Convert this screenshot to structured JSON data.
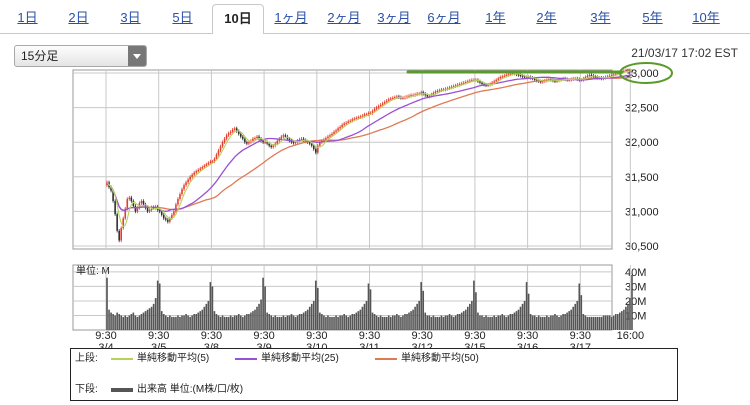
{
  "tabs": [
    {
      "label": "1日",
      "active": false
    },
    {
      "label": "2日",
      "active": false
    },
    {
      "label": "3日",
      "active": false
    },
    {
      "label": "5日",
      "active": false
    },
    {
      "label": "10日",
      "active": true
    },
    {
      "label": "1ヶ月",
      "active": false
    },
    {
      "label": "2ヶ月",
      "active": false
    },
    {
      "label": "3ヶ月",
      "active": false
    },
    {
      "label": "6ヶ月",
      "active": false
    },
    {
      "label": "1年",
      "active": false
    },
    {
      "label": "2年",
      "active": false
    },
    {
      "label": "3年",
      "active": false
    },
    {
      "label": "5年",
      "active": false
    },
    {
      "label": "10年",
      "active": false
    }
  ],
  "interval_select": {
    "value": "15分足"
  },
  "timestamp": "21/03/17 17:02 EST",
  "legend": {
    "upper_label": "上段:",
    "lower_label": "下段:",
    "ma5": "単純移動平均(5)",
    "ma25": "単純移動平均(25)",
    "ma50": "単純移動平均(50)",
    "volume": "出来高 単位:(M株/口/枚)"
  },
  "colors": {
    "candle_up": "#e53b2c",
    "candle_down": "#2f2f2f",
    "ma5": "#b5d35a",
    "ma25": "#9a4fd4",
    "ma50": "#e07a55",
    "volume": "#555555",
    "annotation": "#5a9a2a",
    "grid": "#c8c8c8"
  },
  "chart_data": [
    {
      "type": "line",
      "panel": "price",
      "y_ticks": [
        "33,000",
        "32,500",
        "32,000",
        "31,500",
        "31,000",
        "30,500"
      ],
      "ylim": [
        30500,
        33000
      ],
      "session_labels": [
        {
          "time": "9:30",
          "date": "3/4"
        },
        {
          "time": "9:30",
          "date": "3/5"
        },
        {
          "time": "9:30",
          "date": "3/8"
        },
        {
          "time": "9:30",
          "date": "3/9"
        },
        {
          "time": "9:30",
          "date": "3/10"
        },
        {
          "time": "9:30",
          "date": "3/11"
        },
        {
          "time": "9:30",
          "date": "3/12"
        },
        {
          "time": "9:30",
          "date": "3/15"
        },
        {
          "time": "9:30",
          "date": "3/16"
        },
        {
          "time": "9:30",
          "date": "3/17"
        },
        {
          "time": "16:00",
          "date": ""
        }
      ],
      "close_by_session": [
        [
          31420,
          31350,
          31300,
          31150,
          30960,
          30720,
          30580,
          30760,
          30900,
          31040,
          31180,
          31200,
          31150,
          31080,
          31000,
          31050,
          31120,
          31150,
          31100,
          31050,
          31000,
          31020,
          31060,
          31050,
          31070,
          31020
        ],
        [
          31000,
          30950,
          30900,
          30880,
          30850,
          30900,
          30950,
          31000,
          31100,
          31180,
          31250,
          31320,
          31380,
          31420,
          31460,
          31500,
          31530,
          31560,
          31580,
          31600,
          31620,
          31640,
          31660,
          31680,
          31700,
          31720
        ],
        [
          31720,
          31760,
          31820,
          31880,
          31940,
          32000,
          32050,
          32100,
          32130,
          32150,
          32180,
          32200,
          32160,
          32120,
          32080,
          32050,
          32000,
          31980,
          32000,
          32020,
          32050,
          32060,
          32080,
          32050,
          32020,
          32000
        ],
        [
          32000,
          31980,
          31950,
          31930,
          31950,
          31980,
          32020,
          32050,
          32080,
          32100,
          32080,
          32050,
          32020,
          32000,
          31990,
          32000,
          32020,
          32040,
          32050,
          32030,
          32010,
          32000,
          31980,
          31950,
          31900,
          31850
        ],
        [
          31950,
          32000,
          32020,
          32040,
          32060,
          32080,
          32100,
          32120,
          32150,
          32170,
          32200,
          32220,
          32250,
          32270,
          32280,
          32300,
          32310,
          32330,
          32340,
          32350,
          32360,
          32370,
          32380,
          32400,
          32400,
          32420
        ],
        [
          32420,
          32450,
          32480,
          32500,
          32520,
          32540,
          32560,
          32580,
          32600,
          32620,
          32630,
          32640,
          32650,
          32660,
          32650,
          32640,
          32640,
          32650,
          32660,
          32670,
          32680,
          32680,
          32690,
          32700,
          32700,
          32720
        ],
        [
          32700,
          32680,
          32660,
          32670,
          32690,
          32710,
          32730,
          32740,
          32750,
          32760,
          32760,
          32770,
          32780,
          32790,
          32800,
          32810,
          32820,
          32830,
          32840,
          32850,
          32860,
          32870,
          32880,
          32890,
          32900,
          32900
        ],
        [
          32900,
          32880,
          32860,
          32840,
          32830,
          32820,
          32830,
          32840,
          32860,
          32880,
          32900,
          32920,
          32940,
          32950,
          32960,
          32970,
          32980,
          32990,
          32990,
          33000,
          32980,
          32970,
          32960,
          32950,
          32940,
          32940
        ],
        [
          32940,
          32930,
          32920,
          32900,
          32890,
          32880,
          32870,
          32880,
          32890,
          32900,
          32910,
          32900,
          32890,
          32880,
          32890,
          32900,
          32910,
          32920,
          32910,
          32900,
          32900,
          32910,
          32920,
          32920,
          32910,
          32900
        ],
        [
          32900,
          32920,
          32940,
          32960,
          32970,
          32960,
          32950,
          32940,
          32930,
          32930,
          32920,
          32930,
          32940,
          32950,
          32960,
          32970,
          32980,
          32990,
          33000,
          33010,
          33020,
          33030,
          33040,
          33040,
          33030,
          33020
        ]
      ],
      "ma5_note": "single-line moving averages derived from closes",
      "volume_ticks": [
        "40M",
        "30M",
        "20M",
        "10M"
      ],
      "volume_unit_label": "単位: M",
      "volume_ylim": [
        0,
        42
      ],
      "volume_by_session": [
        [
          36,
          14,
          12,
          11,
          10,
          12,
          11,
          10,
          9,
          10,
          9,
          10,
          11,
          12,
          10,
          9,
          10,
          11,
          12,
          13,
          14,
          15,
          16,
          18,
          22,
          34
        ],
        [
          32,
          13,
          11,
          10,
          9,
          10,
          9,
          9,
          9,
          10,
          9,
          10,
          10,
          11,
          10,
          9,
          10,
          11,
          11,
          12,
          13,
          14,
          16,
          18,
          20,
          33
        ],
        [
          30,
          13,
          11,
          10,
          9,
          10,
          9,
          9,
          9,
          10,
          9,
          10,
          10,
          11,
          10,
          9,
          10,
          11,
          11,
          12,
          13,
          14,
          16,
          18,
          21,
          36
        ],
        [
          30,
          12,
          11,
          10,
          9,
          10,
          9,
          9,
          9,
          10,
          9,
          10,
          10,
          11,
          10,
          9,
          10,
          11,
          11,
          12,
          13,
          14,
          16,
          18,
          20,
          34
        ],
        [
          29,
          12,
          11,
          10,
          9,
          10,
          9,
          9,
          9,
          10,
          9,
          10,
          10,
          11,
          10,
          9,
          10,
          11,
          11,
          12,
          13,
          14,
          16,
          18,
          20,
          32
        ],
        [
          28,
          12,
          11,
          10,
          9,
          10,
          9,
          9,
          9,
          10,
          9,
          10,
          10,
          11,
          10,
          9,
          10,
          11,
          11,
          12,
          13,
          14,
          16,
          18,
          20,
          33
        ],
        [
          27,
          12,
          10,
          10,
          9,
          10,
          9,
          9,
          9,
          10,
          9,
          10,
          10,
          11,
          10,
          9,
          10,
          11,
          11,
          12,
          13,
          14,
          16,
          18,
          20,
          34
        ],
        [
          26,
          12,
          10,
          10,
          9,
          10,
          9,
          9,
          9,
          10,
          9,
          10,
          10,
          11,
          10,
          9,
          10,
          11,
          11,
          12,
          13,
          14,
          16,
          18,
          20,
          33
        ],
        [
          25,
          11,
          10,
          10,
          9,
          10,
          9,
          9,
          9,
          10,
          9,
          10,
          10,
          11,
          10,
          9,
          10,
          11,
          11,
          12,
          13,
          14,
          16,
          18,
          20,
          32
        ],
        [
          24,
          11,
          10,
          9,
          9,
          9,
          9,
          9,
          9,
          9,
          9,
          10,
          10,
          10,
          10,
          9,
          10,
          11,
          11,
          12,
          13,
          14,
          16,
          18,
          22,
          38
        ]
      ]
    }
  ]
}
